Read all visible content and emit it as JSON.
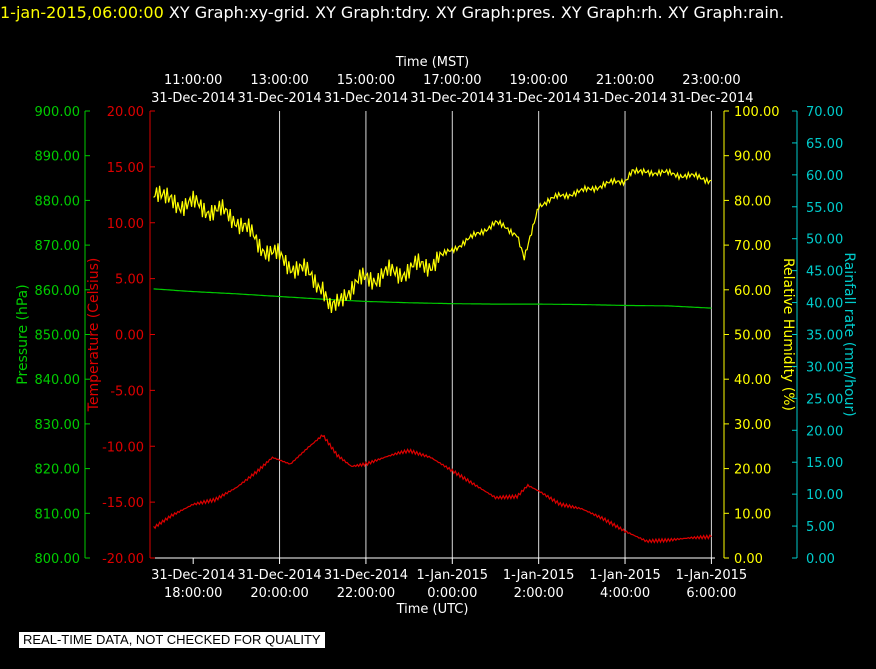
{
  "header": {
    "timestamp": "1-jan-2015,06:00:00",
    "graphs": [
      "XY Graph:xy-grid.",
      "XY Graph:tdry.",
      "XY Graph:pres.",
      "XY Graph:rh.",
      "XY Graph:rain."
    ]
  },
  "disclaimer": "REAL-TIME DATA, NOT CHECKED FOR QUALITY",
  "colors": {
    "background": "#000000",
    "grid": "#ffffff",
    "pressure": "#00cc00",
    "temperature": "#dd0000",
    "humidity": "#ffff00",
    "rain": "#00cccc"
  },
  "chart_data": {
    "type": "line",
    "grid": true,
    "x_bottom": {
      "label": "Time (UTC)",
      "range": [
        "2014-12-31 17:00",
        "2015-01-01 06:05"
      ],
      "ticks": [
        {
          "date": "31-Dec-2014",
          "time": "18:00:00"
        },
        {
          "date": "31-Dec-2014",
          "time": "20:00:00"
        },
        {
          "date": "31-Dec-2014",
          "time": "22:00:00"
        },
        {
          "date": "1-Jan-2015",
          "time": "0:00:00"
        },
        {
          "date": "1-Jan-2015",
          "time": "2:00:00"
        },
        {
          "date": "1-Jan-2015",
          "time": "4:00:00"
        },
        {
          "date": "1-Jan-2015",
          "time": "6:00:00"
        }
      ]
    },
    "x_top": {
      "label": "Time (MST)",
      "ticks": [
        {
          "time": "11:00:00",
          "date": "31-Dec-2014"
        },
        {
          "time": "13:00:00",
          "date": "31-Dec-2014"
        },
        {
          "time": "15:00:00",
          "date": "31-Dec-2014"
        },
        {
          "time": "17:00:00",
          "date": "31-Dec-2014"
        },
        {
          "time": "19:00:00",
          "date": "31-Dec-2014"
        },
        {
          "time": "21:00:00",
          "date": "31-Dec-2014"
        },
        {
          "time": "23:00:00",
          "date": "31-Dec-2014"
        }
      ]
    },
    "axes": {
      "pressure": {
        "label": "Pressure (hPa)",
        "range": [
          800,
          900
        ],
        "ticks": [
          "800.00",
          "810.00",
          "820.00",
          "830.00",
          "840.00",
          "850.00",
          "860.00",
          "870.00",
          "880.00",
          "890.00",
          "900.00"
        ]
      },
      "temperature": {
        "label": "Temperature (Celsius)",
        "range": [
          -20,
          20
        ],
        "ticks": [
          "-20.00",
          "-15.00",
          "-10.00",
          "-5.00",
          "0.00",
          "5.00",
          "10.00",
          "15.00",
          "20.00"
        ]
      },
      "humidity": {
        "label": "Relative Humidity (%)",
        "range": [
          0,
          100
        ],
        "ticks": [
          "0.00",
          "10.00",
          "20.00",
          "30.00",
          "40.00",
          "50.00",
          "60.00",
          "70.00",
          "80.00",
          "90.00",
          "100.00"
        ]
      },
      "rain": {
        "label": "Rainfall rate (mm/hour)",
        "range": [
          0,
          70
        ],
        "ticks": [
          "0.00",
          "5.00",
          "10.00",
          "15.00",
          "20.00",
          "25.00",
          "30.00",
          "35.00",
          "40.00",
          "45.00",
          "50.00",
          "55.00",
          "60.00",
          "65.00",
          "70.00"
        ]
      }
    },
    "series": [
      {
        "axis": "temperature",
        "x": [
          "2014-12-31 17:05",
          "2014-12-31 17:30",
          "2014-12-31 18:00",
          "2014-12-31 18:30",
          "2014-12-31 19:00",
          "2014-12-31 19:30",
          "2014-12-31 19:50",
          "2014-12-31 20:15",
          "2014-12-31 20:40",
          "2014-12-31 21:00",
          "2014-12-31 21:20",
          "2014-12-31 21:40",
          "2014-12-31 22:00",
          "2014-12-31 22:30",
          "2014-12-31 22:45",
          "2014-12-31 23:00",
          "2014-12-31 23:30",
          "2015-01-01 00:00",
          "2015-01-01 00:30",
          "2015-01-01 01:00",
          "2015-01-01 01:30",
          "2015-01-01 01:45",
          "2015-01-01 02:00",
          "2015-01-01 02:30",
          "2015-01-01 03:00",
          "2015-01-01 03:30",
          "2015-01-01 04:00",
          "2015-01-01 04:30",
          "2015-01-01 05:00",
          "2015-01-01 05:30",
          "2015-01-01 06:00"
        ],
        "y": [
          -17.3,
          -16.2,
          -15.2,
          -14.8,
          -13.7,
          -12.2,
          -11.0,
          -11.6,
          -10.1,
          -9.0,
          -10.8,
          -11.8,
          -11.6,
          -10.9,
          -10.6,
          -10.4,
          -11.0,
          -12.2,
          -13.4,
          -14.6,
          -14.5,
          -13.5,
          -14.0,
          -15.2,
          -15.6,
          -16.5,
          -17.6,
          -18.5,
          -18.4,
          -18.2,
          -18.1
        ]
      },
      {
        "axis": "pressure",
        "x": [
          "2014-12-31 17:05",
          "2014-12-31 18:00",
          "2014-12-31 19:00",
          "2014-12-31 20:00",
          "2014-12-31 21:00",
          "2014-12-31 22:00",
          "2014-12-31 23:00",
          "2015-01-01 00:00",
          "2015-01-01 01:00",
          "2015-01-01 02:00",
          "2015-01-01 03:00",
          "2015-01-01 04:00",
          "2015-01-01 05:00",
          "2015-01-01 06:00"
        ],
        "y": [
          860.2,
          859.6,
          859.1,
          858.5,
          857.9,
          857.4,
          857.1,
          856.9,
          856.8,
          856.8,
          856.7,
          856.5,
          856.4,
          855.9
        ]
      },
      {
        "axis": "humidity",
        "x": [
          "2014-12-31 17:05",
          "2014-12-31 17:30",
          "2014-12-31 18:00",
          "2014-12-31 18:30",
          "2014-12-31 19:00",
          "2014-12-31 19:30",
          "2014-12-31 20:00",
          "2014-12-31 20:30",
          "2014-12-31 21:00",
          "2014-12-31 21:10",
          "2014-12-31 21:30",
          "2014-12-31 22:00",
          "2014-12-31 22:30",
          "2014-12-31 23:00",
          "2014-12-31 23:30",
          "2015-01-01 00:00",
          "2015-01-01 00:30",
          "2015-01-01 01:00",
          "2015-01-01 01:30",
          "2015-01-01 01:40",
          "2015-01-01 02:00",
          "2015-01-01 02:30",
          "2015-01-01 03:00",
          "2015-01-01 03:30",
          "2015-01-01 04:00",
          "2015-01-01 04:10",
          "2015-01-01 04:30",
          "2015-01-01 05:00",
          "2015-01-01 05:30",
          "2015-01-01 06:00"
        ],
        "y": [
          80.5,
          79.8,
          79.0,
          77.8,
          76.0,
          70.5,
          67.0,
          64.5,
          61.0,
          57.5,
          59.5,
          62.5,
          63.5,
          64.5,
          66.0,
          69.0,
          72.0,
          75.0,
          72.5,
          67.5,
          79.0,
          81.0,
          82.0,
          83.5,
          84.5,
          87.0,
          86.5,
          86.0,
          85.5,
          84.5
        ]
      }
    ]
  }
}
